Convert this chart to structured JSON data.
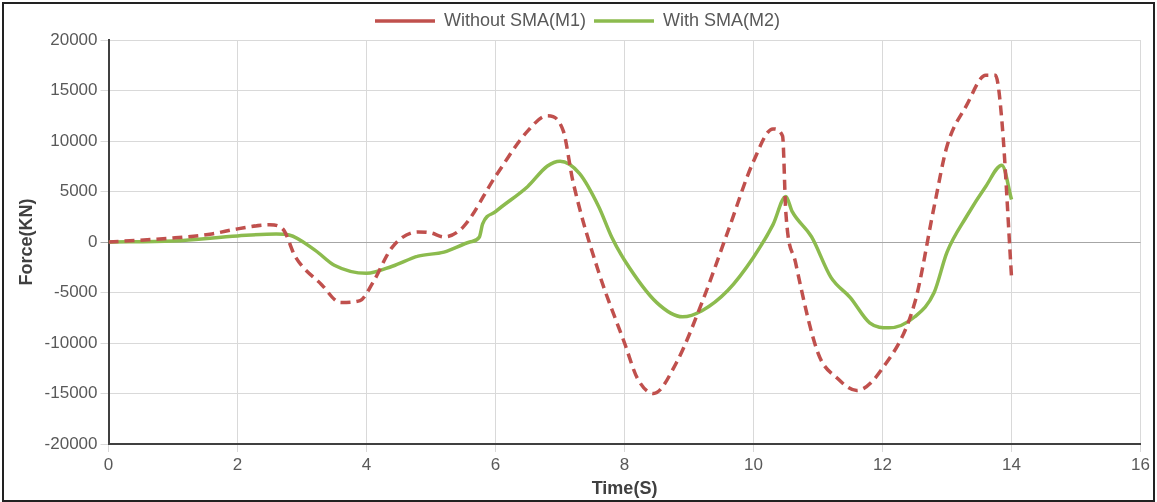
{
  "chart_data": {
    "type": "line",
    "xlabel": "Time(S)",
    "ylabel": "Force(KN)",
    "xlim": [
      0,
      16
    ],
    "xticks": [
      0,
      2,
      4,
      6,
      8,
      10,
      12,
      14,
      16
    ],
    "ylim": [
      -20000,
      20000
    ],
    "yticks": [
      -20000,
      -15000,
      -10000,
      -5000,
      0,
      5000,
      10000,
      15000,
      20000
    ],
    "grid": true,
    "legend": "top",
    "marker": "none",
    "series": [
      {
        "name": "Without SMA(M1)",
        "color": "#c0504d",
        "line_style": "dashed",
        "x": [
          0,
          1,
          1.6,
          2,
          2.5,
          2.7,
          2.9,
          3.3,
          3.6,
          3.9,
          4.1,
          4.4,
          4.8,
          5,
          5.2,
          5.5,
          6,
          6.5,
          6.8,
          7.05,
          7.2,
          7.6,
          8,
          8.2,
          8.45,
          8.8,
          9.2,
          9.6,
          10,
          10.3,
          10.45,
          10.5,
          10.65,
          11,
          11.3,
          11.6,
          12,
          12.5,
          12.8,
          13,
          13.3,
          13.6,
          13.75,
          13.85,
          14
        ],
        "values": [
          0,
          400,
          800,
          1300,
          1700,
          1300,
          -1500,
          -4200,
          -6000,
          -5800,
          -4000,
          -500,
          1000,
          900,
          500,
          1500,
          6500,
          11000,
          12500,
          11000,
          6000,
          -3000,
          -10000,
          -13500,
          -15000,
          -12000,
          -6000,
          1000,
          8000,
          11200,
          10500,
          3000,
          -2000,
          -11000,
          -13500,
          -14700,
          -12500,
          -6000,
          3500,
          9500,
          13500,
          16500,
          16500,
          12000,
          -3500
        ]
      },
      {
        "name": "With SMA(M2)",
        "color": "#8cbb4e",
        "line_style": "solid",
        "x": [
          0,
          1,
          2,
          2.6,
          2.8,
          3.2,
          3.5,
          4,
          4.4,
          4.8,
          5.2,
          5.6,
          5.75,
          5.8,
          6,
          6.5,
          6.8,
          7,
          7.3,
          7.6,
          7.8,
          8,
          8.5,
          8.9,
          9.2,
          9.6,
          10,
          10.3,
          10.5,
          10.6,
          10.9,
          11.2,
          11.5,
          11.8,
          12.1,
          12.5,
          12.8,
          13,
          13.3,
          13.6,
          13.85,
          14
        ],
        "values": [
          0,
          100,
          600,
          800,
          700,
          -800,
          -2300,
          -3100,
          -2400,
          -1400,
          -1000,
          0,
          500,
          1800,
          3000,
          5500,
          7500,
          8000,
          6800,
          3500,
          500,
          -1800,
          -6000,
          -7400,
          -6800,
          -4800,
          -1500,
          1700,
          4500,
          3000,
          500,
          -3500,
          -5500,
          -8000,
          -8500,
          -7400,
          -5000,
          -1000,
          2500,
          5500,
          7600,
          4200
        ]
      }
    ]
  }
}
